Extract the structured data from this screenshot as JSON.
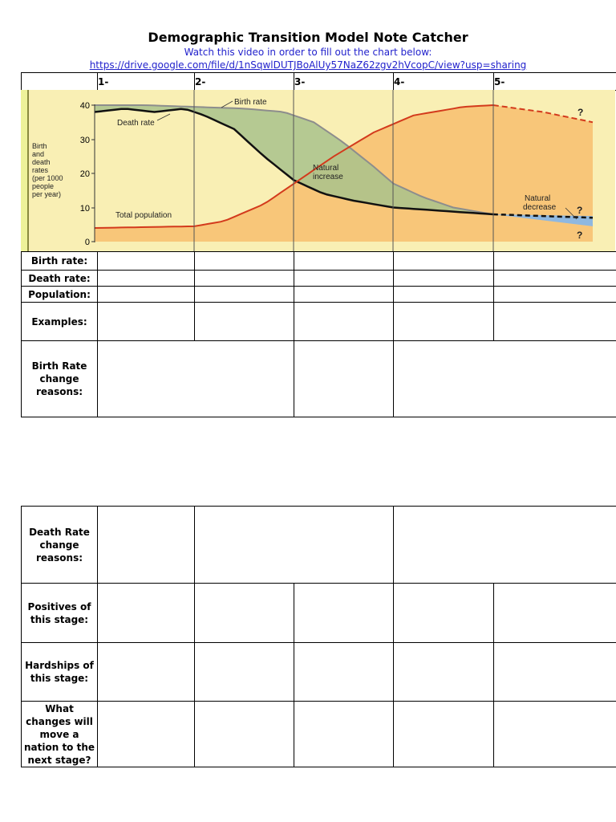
{
  "header": {
    "title": "Demographic Transition Model Note Catcher",
    "subtitle": "Watch this video in order to fill out the chart below:",
    "link": "https://drive.google.com/file/d/1nSqwlDUTJBoAlUy57NaZ62zgv2hVcopC/view?usp=sharing"
  },
  "stages": [
    "1-",
    "2-",
    "3-",
    "4-",
    "5-"
  ],
  "chart_labels": {
    "birth_rate": "Birth rate",
    "death_rate": "Death rate",
    "natural_increase_1": "Natural",
    "natural_increase_2": "increase",
    "natural_decrease_1": "Natural",
    "natural_decrease_2": "decrease",
    "total_population": "Total population",
    "y_axis_lines": [
      "Birth",
      "and",
      "death",
      "rates",
      "(per 1000",
      "people",
      "per year)"
    ],
    "y_ticks": [
      "40",
      "30",
      "20",
      "10",
      "0"
    ],
    "question_mark": "?"
  },
  "chart_data": {
    "type": "line",
    "x_categories": [
      "1",
      "2",
      "3",
      "4",
      "5"
    ],
    "ylabel": "Birth and death rates (per 1000 people per year)",
    "ylim": [
      0,
      40
    ],
    "series": [
      {
        "name": "Birth rate",
        "x": [
          0,
          0.5,
          1.0,
          1.5,
          1.9,
          2.2,
          2.5,
          2.8,
          3.0,
          3.3,
          3.6,
          4.0,
          5.0
        ],
        "y": [
          40,
          40,
          39.5,
          39,
          38,
          35,
          29,
          22,
          17,
          13,
          10,
          8,
          7
        ]
      },
      {
        "name": "Death rate",
        "x": [
          0,
          0.3,
          0.6,
          0.9,
          1.1,
          1.4,
          1.7,
          2.0,
          2.3,
          2.6,
          3.0,
          3.5,
          4.0,
          5.0
        ],
        "y": [
          38,
          39,
          38,
          39,
          37,
          33,
          25,
          18,
          14,
          12,
          10,
          9,
          8,
          7
        ]
      },
      {
        "name": "Total population",
        "x": [
          0,
          1.0,
          1.3,
          1.7,
          2.0,
          2.4,
          2.8,
          3.2,
          3.7,
          4.0,
          4.5,
          5.0
        ],
        "y": [
          4,
          4.5,
          6,
          11,
          17,
          25,
          32,
          37,
          39.5,
          40,
          38,
          35
        ]
      }
    ]
  },
  "rows_top": {
    "birth_rate": "Birth rate:",
    "death_rate": "Death rate:",
    "population": "Population:",
    "examples": "Examples:",
    "birth_reasons": [
      "Birth Rate",
      "change",
      "reasons:"
    ]
  },
  "rows_bottom": {
    "death_reasons": [
      "Death Rate",
      "change",
      "reasons:"
    ],
    "positives": [
      "Positives of",
      "this stage:"
    ],
    "hardships": [
      "Hardships of",
      "this stage:"
    ],
    "changes": [
      "What",
      "changes will",
      "move a",
      "nation to the",
      "next stage?"
    ]
  }
}
